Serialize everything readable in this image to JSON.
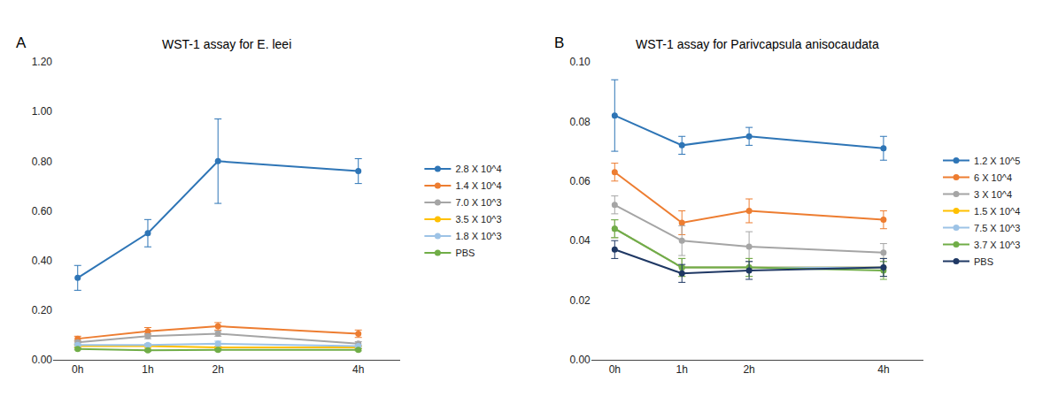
{
  "chart_data": [
    {
      "type": "line",
      "title": "WST-1 assay for E. leei",
      "annotations": [
        "A"
      ],
      "x": [
        0,
        1,
        2,
        4
      ],
      "xlim": [
        -0.35,
        4.6
      ],
      "xticks": [
        {
          "value": 0,
          "label": "0h"
        },
        {
          "value": 1,
          "label": "1h"
        },
        {
          "value": 2,
          "label": "2h"
        },
        {
          "value": 4,
          "label": "4h"
        }
      ],
      "ylim": [
        0.0,
        1.2
      ],
      "yticks": [
        {
          "value": 0.0,
          "label": "0.00"
        },
        {
          "value": 0.2,
          "label": "0.20"
        },
        {
          "value": 0.4,
          "label": "0.40"
        },
        {
          "value": 0.6,
          "label": "0.60"
        },
        {
          "value": 0.8,
          "label": "0.80"
        },
        {
          "value": 1.0,
          "label": "1.00"
        },
        {
          "value": 1.2,
          "label": "1.20"
        }
      ],
      "grid": false,
      "legend": "right",
      "marker": "circle",
      "series": [
        {
          "name": "2.8 X 10^4",
          "color": "#2E75B6",
          "values": [
            0.33,
            0.51,
            0.8,
            0.76
          ],
          "errors": [
            0.05,
            0.055,
            0.17,
            0.05
          ]
        },
        {
          "name": "1.4 X 10^4",
          "color": "#ED7D31",
          "values": [
            0.085,
            0.115,
            0.135,
            0.105
          ],
          "errors": [
            0.01,
            0.015,
            0.015,
            0.015
          ]
        },
        {
          "name": "7.0 X 10^3",
          "color": "#A5A5A5",
          "values": [
            0.07,
            0.095,
            0.105,
            0.065
          ],
          "errors": [
            0.008,
            0.01,
            0.01,
            0.008
          ]
        },
        {
          "name": "3.5 X 10^3",
          "color": "#FFC000",
          "values": [
            0.055,
            0.055,
            0.05,
            0.05
          ],
          "errors": [
            0.005,
            0.008,
            0.005,
            0.005
          ]
        },
        {
          "name": "1.8 X 10^3",
          "color": "#9DC3E6",
          "values": [
            0.06,
            0.06,
            0.065,
            0.055
          ],
          "errors": [
            0.005,
            0.005,
            0.01,
            0.005
          ]
        },
        {
          "name": "PBS",
          "color": "#70AD47",
          "values": [
            0.044,
            0.038,
            0.04,
            0.04
          ],
          "errors": [
            0.004,
            0.004,
            0.004,
            0.004
          ]
        }
      ]
    },
    {
      "type": "line",
      "title": "WST-1 assay for Parivcapsula anisocaudata",
      "annotations": [
        "B"
      ],
      "x": [
        0,
        1,
        2,
        4
      ],
      "xlim": [
        -0.35,
        4.6
      ],
      "xticks": [
        {
          "value": 0,
          "label": "0h"
        },
        {
          "value": 1,
          "label": "1h"
        },
        {
          "value": 2,
          "label": "2h"
        },
        {
          "value": 4,
          "label": "4h"
        }
      ],
      "ylim": [
        0.0,
        0.1
      ],
      "yticks": [
        {
          "value": 0.0,
          "label": "0.00"
        },
        {
          "value": 0.02,
          "label": "0.02"
        },
        {
          "value": 0.04,
          "label": "0.04"
        },
        {
          "value": 0.06,
          "label": "0.06"
        },
        {
          "value": 0.08,
          "label": "0.08"
        },
        {
          "value": 0.1,
          "label": "0.10"
        }
      ],
      "grid": false,
      "legend": "right",
      "marker": "circle",
      "series": [
        {
          "name": "1.2 X 10^5",
          "color": "#2E75B6",
          "values": [
            0.082,
            0.072,
            0.075,
            0.071
          ],
          "errors": [
            0.012,
            0.003,
            0.003,
            0.004
          ]
        },
        {
          "name": "6 X 10^4",
          "color": "#ED7D31",
          "values": [
            0.063,
            0.046,
            0.05,
            0.047
          ],
          "errors": [
            0.003,
            0.004,
            0.004,
            0.003
          ]
        },
        {
          "name": "3 X 10^4",
          "color": "#A5A5A5",
          "values": [
            0.052,
            0.04,
            0.038,
            0.036
          ],
          "errors": [
            0.003,
            0.005,
            0.005,
            0.003
          ]
        },
        {
          "name": "1.5 X 10^4",
          "color": "#FFC000",
          "values": [
            0.044,
            0.031,
            0.031,
            0.031
          ],
          "errors": [
            0.003,
            0.003,
            0.003,
            0.003
          ]
        },
        {
          "name": "7.5 X 10^3",
          "color": "#9DC3E6",
          "values": [
            0.044,
            0.031,
            0.031,
            0.031
          ],
          "errors": [
            0.003,
            0.003,
            0.003,
            0.003
          ]
        },
        {
          "name": "3.7 X 10^3",
          "color": "#70AD47",
          "values": [
            0.044,
            0.031,
            0.031,
            0.03
          ],
          "errors": [
            0.003,
            0.003,
            0.003,
            0.003
          ]
        },
        {
          "name": "PBS",
          "color": "#1F3864",
          "values": [
            0.037,
            0.029,
            0.03,
            0.031
          ],
          "errors": [
            0.003,
            0.003,
            0.003,
            0.003
          ]
        }
      ]
    }
  ]
}
